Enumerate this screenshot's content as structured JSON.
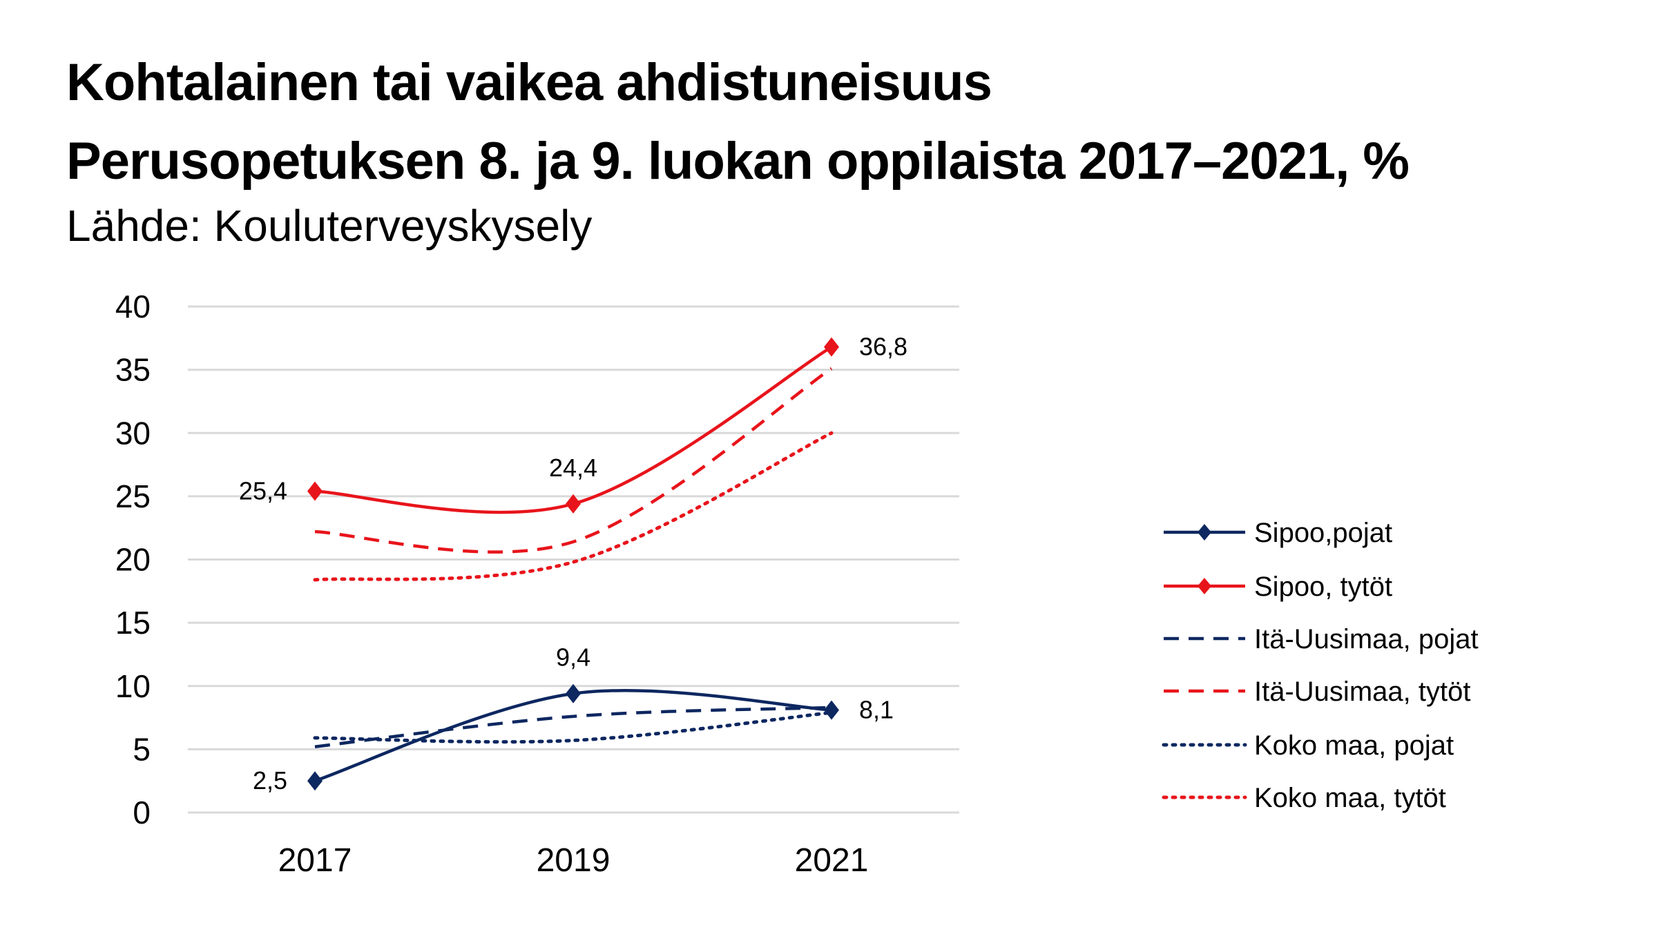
{
  "chart_data": {
    "type": "line",
    "title": "Kohtalainen tai vaikea ahdistuneisuus",
    "subtitle": "Perusopetuksen 8. ja 9. luokan oppilaista 2017–2021, %",
    "source": "Lähde: Kouluterveyskysely",
    "xlabel": "",
    "ylabel": "",
    "categories": [
      "2017",
      "2019",
      "2021"
    ],
    "ylim": [
      0,
      40
    ],
    "yticks": [
      "0",
      "5",
      "10",
      "15",
      "20",
      "25",
      "30",
      "35",
      "40"
    ],
    "grid": true,
    "legend_position": "right",
    "series": [
      {
        "name": "Sipoo,pojat",
        "values": [
          2.5,
          9.4,
          8.1
        ],
        "labels": [
          "2,5",
          "9,4",
          "8,1"
        ],
        "color": "#0d2760",
        "dash": "solid",
        "marker": "diamond"
      },
      {
        "name": "Sipoo, tytöt",
        "values": [
          25.4,
          24.4,
          36.8
        ],
        "labels": [
          "25,4",
          "24,4",
          "36,8"
        ],
        "color": "#e8141b",
        "dash": "solid",
        "marker": "diamond"
      },
      {
        "name": "Itä-Uusimaa, pojat",
        "values": [
          5.2,
          7.6,
          8.3
        ],
        "color": "#0d2760",
        "dash": "dashed"
      },
      {
        "name": "Itä-Uusimaa, tytöt",
        "values": [
          22.2,
          21.4,
          35.1
        ],
        "color": "#e8141b",
        "dash": "dashed"
      },
      {
        "name": "Koko maa, pojat",
        "values": [
          5.9,
          5.7,
          7.9
        ],
        "color": "#0d2760",
        "dash": "dotted"
      },
      {
        "name": "Koko maa, tytöt",
        "values": [
          18.4,
          19.8,
          30.0
        ],
        "color": "#e8141b",
        "dash": "dotted"
      }
    ]
  }
}
